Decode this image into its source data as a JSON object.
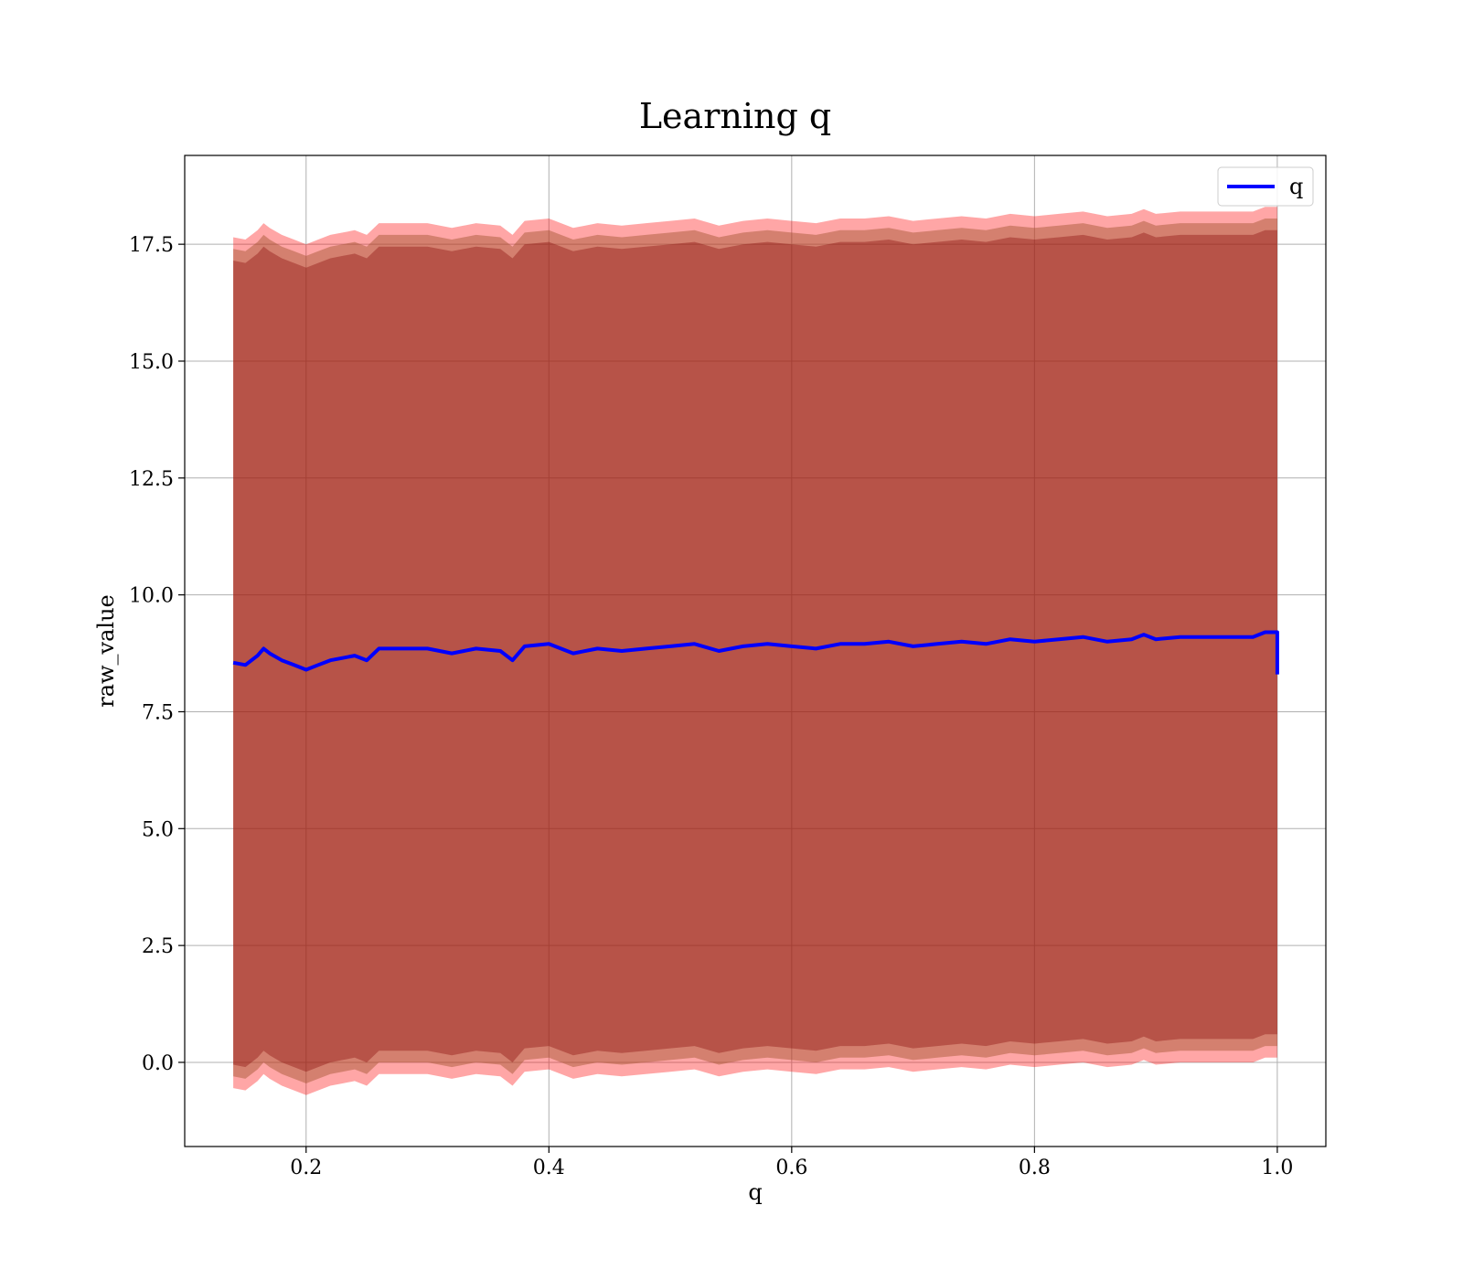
{
  "chart_data": {
    "type": "area",
    "title": "Learning q",
    "xlabel": "q",
    "ylabel": "raw_value",
    "xlim": [
      0.1,
      1.04
    ],
    "ylim": [
      -1.8,
      19.4
    ],
    "x_ticks": [
      {
        "value": 0.2,
        "label": "0.2"
      },
      {
        "value": 0.4,
        "label": "0.4"
      },
      {
        "value": 0.6,
        "label": "0.6"
      },
      {
        "value": 0.8,
        "label": "0.8"
      },
      {
        "value": 1.0,
        "label": "1.0"
      }
    ],
    "y_ticks": [
      {
        "value": 0.0,
        "label": "0.0"
      },
      {
        "value": 2.5,
        "label": "2.5"
      },
      {
        "value": 5.0,
        "label": "5.0"
      },
      {
        "value": 7.5,
        "label": "7.5"
      },
      {
        "value": 10.0,
        "label": "10.0"
      },
      {
        "value": 12.5,
        "label": "12.5"
      },
      {
        "value": 15.0,
        "label": "15.0"
      },
      {
        "value": 17.5,
        "label": "17.5"
      }
    ],
    "grid": true,
    "legend": {
      "position": "top-right",
      "entries": [
        {
          "label": "q",
          "color": "#0000ff"
        }
      ]
    },
    "series": [
      {
        "name": "q",
        "color": "#0000ff",
        "x": [
          0.14,
          0.15,
          0.16,
          0.165,
          0.17,
          0.18,
          0.19,
          0.2,
          0.21,
          0.22,
          0.23,
          0.24,
          0.25,
          0.26,
          0.28,
          0.3,
          0.32,
          0.34,
          0.36,
          0.37,
          0.38,
          0.4,
          0.42,
          0.44,
          0.46,
          0.48,
          0.5,
          0.52,
          0.54,
          0.56,
          0.58,
          0.6,
          0.62,
          0.64,
          0.66,
          0.68,
          0.7,
          0.72,
          0.74,
          0.76,
          0.78,
          0.8,
          0.82,
          0.84,
          0.86,
          0.88,
          0.89,
          0.9,
          0.92,
          0.94,
          0.96,
          0.98,
          0.99,
          1.0,
          1.0
        ],
        "y": [
          8.55,
          8.5,
          8.7,
          8.85,
          8.75,
          8.6,
          8.5,
          8.4,
          8.5,
          8.6,
          8.65,
          8.7,
          8.6,
          8.85,
          8.85,
          8.85,
          8.75,
          8.85,
          8.8,
          8.6,
          8.9,
          8.95,
          8.75,
          8.85,
          8.8,
          8.85,
          8.9,
          8.95,
          8.8,
          8.9,
          8.95,
          8.9,
          8.85,
          8.95,
          8.95,
          9.0,
          8.9,
          8.95,
          9.0,
          8.95,
          9.05,
          9.0,
          9.05,
          9.1,
          9.0,
          9.05,
          9.15,
          9.05,
          9.1,
          9.1,
          9.1,
          9.1,
          9.2,
          9.2,
          8.3
        ]
      }
    ],
    "bands": [
      {
        "color": "#ff0000",
        "alpha": 0.35,
        "half_width": 9.1
      },
      {
        "color": "#a0522d",
        "alpha": 0.45,
        "half_width": 8.85
      },
      {
        "color": "#800000",
        "alpha": 0.35,
        "half_width": 8.6
      }
    ]
  }
}
